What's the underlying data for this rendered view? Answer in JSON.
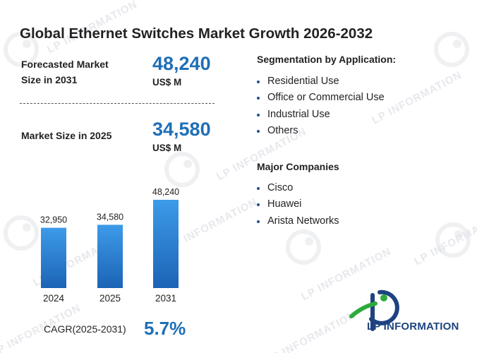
{
  "title": "Global Ethernet Switches Market Growth 2026-2032",
  "forecast": {
    "label_line1": "Forecasted Market",
    "label_line2": "Size in 2031",
    "value": "48,240",
    "unit": "US$ M"
  },
  "current": {
    "label": "Market Size in 2025",
    "value": "34,580",
    "unit": "US$ M"
  },
  "segmentation": {
    "title": "Segmentation by Application:",
    "items": [
      "Residential Use",
      "Office or Commercial Use",
      "Industrial Use",
      "Others"
    ]
  },
  "companies": {
    "title": "Major Companies",
    "items": [
      "Cisco",
      "Huawei",
      "Arista Networks"
    ]
  },
  "cagr": {
    "label": "CAGR(2025-2031)",
    "value": "5.7%"
  },
  "logo": {
    "text": "LP INFORMATION"
  },
  "watermark": {
    "text": "LP INFORMATION"
  },
  "colors": {
    "accent": "#1f6fb7",
    "bar_top": "#3d9be9",
    "bar_bottom": "#1c63b5",
    "logo_navy": "#1e4380",
    "logo_green": "#2eaa3c"
  },
  "chart_data": {
    "type": "bar",
    "categories": [
      "2024",
      "2025",
      "2031"
    ],
    "values": [
      32950,
      34580,
      48240
    ],
    "data_labels": [
      "32,950",
      "34,580",
      "48,240"
    ],
    "title": "",
    "xlabel": "",
    "ylabel": "",
    "ylim": [
      0,
      50000
    ],
    "grid": false,
    "legend": "none"
  }
}
